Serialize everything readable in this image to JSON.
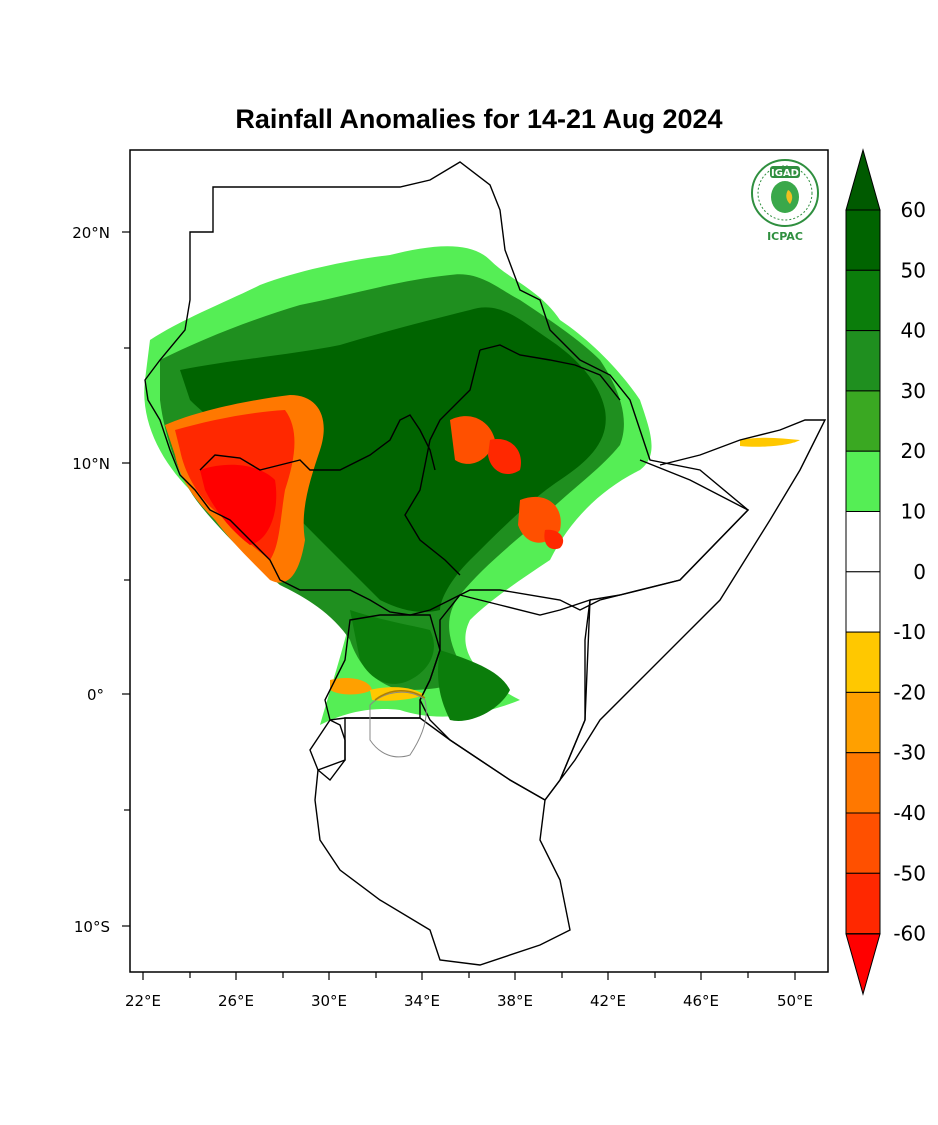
{
  "title": "Rainfall Anomalies for 14-21 Aug 2024",
  "logo": {
    "top_text": "IGAD",
    "bottom_text": "ICPAC"
  },
  "axes": {
    "lat_labels": [
      "20°N",
      "10°N",
      "0°",
      "10°S"
    ],
    "lon_labels": [
      "22°E",
      "26°E",
      "30°E",
      "34°E",
      "38°E",
      "42°E",
      "46°E",
      "50°E"
    ]
  },
  "colorbar": {
    "labels": [
      "60",
      "50",
      "40",
      "30",
      "20",
      "10",
      "0",
      "-10",
      "-20",
      "-30",
      "-40",
      "-50",
      "-60"
    ],
    "colors": [
      "#006400",
      "#0b7d0b",
      "#1f8f1f",
      "#3aa822",
      "#55ee55",
      "#ffffff",
      "#ffffff",
      "#ffc800",
      "#ffa000",
      "#ff7800",
      "#ff5000",
      "#ff2800"
    ],
    "top_arrow_color": "#005a00",
    "bottom_arrow_color": "#ff0000"
  }
}
